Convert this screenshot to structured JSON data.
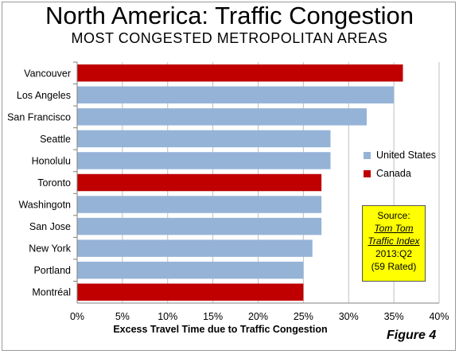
{
  "title": "North America: Traffic Congestion",
  "subtitle": "MOST CONGESTED METROPOLITAN AREAS",
  "figure_label": "Figure 4",
  "source": {
    "line1": "Source:",
    "line2": "Tom Tom",
    "line3": "Traffic Index",
    "line4": "2013:Q2",
    "line5": "(59 Rated)"
  },
  "legend": [
    {
      "label": "United States",
      "color": "#95b3d7"
    },
    {
      "label": "Canada",
      "color": "#c00000"
    }
  ],
  "chart_data": {
    "type": "bar",
    "orientation": "horizontal",
    "title": "North America: Traffic Congestion",
    "subtitle": "MOST CONGESTED METROPOLITAN AREAS",
    "xlabel": "Excess Travel Time due to Traffic Congestion",
    "ylabel": "",
    "xlim": [
      0,
      40
    ],
    "x_ticks": [
      "0%",
      "5%",
      "10%",
      "15%",
      "20%",
      "25%",
      "30%",
      "35%",
      "40%"
    ],
    "grid": true,
    "legend_position": "right",
    "categories": [
      "Vancouver",
      "Los Angeles",
      "San Francisco",
      "Seattle",
      "Honolulu",
      "Toronto",
      "Washingotn",
      "San Jose",
      "New York",
      "Portland",
      "Montréal"
    ],
    "values": [
      36,
      35,
      32,
      28,
      28,
      27,
      27,
      27,
      26,
      25,
      25
    ],
    "country": [
      "Canada",
      "United States",
      "United States",
      "United States",
      "United States",
      "Canada",
      "United States",
      "United States",
      "United States",
      "United States",
      "Canada"
    ]
  }
}
